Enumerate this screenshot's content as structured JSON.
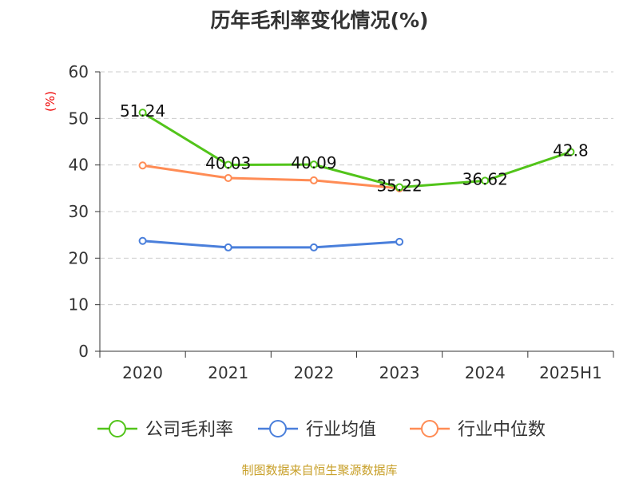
{
  "chart_data": {
    "type": "line",
    "title": "历年毛利率变化情况(%)",
    "ylabel": "(%)",
    "xlabel": "",
    "categories": [
      "2020",
      "2021",
      "2022",
      "2023",
      "2024",
      "2025H1"
    ],
    "ylim": [
      0,
      60
    ],
    "yticks": [
      0,
      10,
      20,
      30,
      40,
      50,
      60
    ],
    "grid": true,
    "legend_position": "bottom",
    "series": [
      {
        "name": "公司毛利率",
        "color": "#52c41a",
        "values": [
          51.24,
          40.03,
          40.09,
          35.22,
          36.62,
          42.8
        ],
        "labels": [
          "51.24",
          "40.03",
          "40.09",
          "35.22",
          "36.62",
          "42.8"
        ]
      },
      {
        "name": "行业均值",
        "color": "#4a7fdb",
        "values": [
          23.7,
          22.3,
          22.3,
          23.5,
          null,
          null
        ]
      },
      {
        "name": "行业中位数",
        "color": "#ff8c55",
        "values": [
          39.9,
          37.2,
          36.7,
          35.0,
          null,
          null
        ]
      }
    ]
  },
  "source": "制图数据来自恒生聚源数据库"
}
